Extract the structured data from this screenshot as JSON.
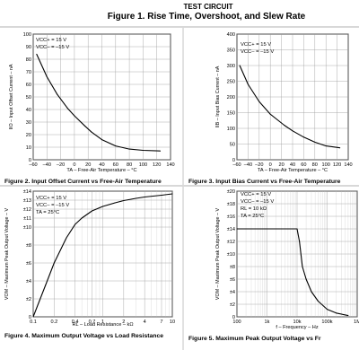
{
  "header": {
    "subtitle": "TEST CIRCUIT",
    "title": "Figure 1. Rise Time, Overshoot, and Slew Rate"
  },
  "chart_data": [
    {
      "id": "fig2",
      "type": "line",
      "caption": "Figure 2. Input Offset Current vs Free-Air Temperature",
      "xlabel": "TA – Free-Air Temperature – °C",
      "ylabel": "IIO – Input Offset Current – nA",
      "conditions": [
        "VCC+ = 15 V",
        "VCC– = –15 V"
      ],
      "xlim": [
        -60,
        140
      ],
      "ylim": [
        0,
        100
      ],
      "x_scale": "linear",
      "grid": true,
      "xticks": [
        -60,
        -40,
        -20,
        0,
        20,
        40,
        60,
        80,
        100,
        120,
        140
      ],
      "xtick_labels": [
        "–60",
        "–40",
        "–20",
        "0",
        "20",
        "40",
        "60",
        "80",
        "100",
        "120",
        "140"
      ],
      "yticks": [
        0,
        10,
        20,
        30,
        40,
        50,
        60,
        70,
        80,
        90,
        100
      ],
      "ytick_labels": [
        "0",
        "10",
        "20",
        "30",
        "40",
        "50",
        "60",
        "70",
        "80",
        "90",
        "100"
      ],
      "series": [
        {
          "x": [
            -55,
            -40,
            -25,
            -10,
            0,
            15,
            25,
            40,
            60,
            80,
            100,
            125
          ],
          "y": [
            84,
            66,
            52,
            41,
            35,
            27,
            22,
            16,
            11,
            8.5,
            7.5,
            7
          ]
        }
      ]
    },
    {
      "id": "fig3",
      "type": "line",
      "caption": "Figure 3. Input Bias Current vs Free-Air Temperature",
      "xlabel": "TA – Free-Air Temperature – °C",
      "ylabel": "IIB – Input Bias Current – nA",
      "conditions": [
        "VCC+ = 15 V",
        "VCC– = –15 V"
      ],
      "xlim": [
        -60,
        140
      ],
      "ylim": [
        0,
        400
      ],
      "x_scale": "linear",
      "grid": true,
      "xticks": [
        -60,
        -40,
        -20,
        0,
        20,
        40,
        60,
        80,
        100,
        120,
        140
      ],
      "xtick_labels": [
        "–60",
        "–40",
        "–20",
        "0",
        "20",
        "40",
        "60",
        "80",
        "100",
        "120",
        "140"
      ],
      "yticks": [
        0,
        50,
        100,
        150,
        200,
        250,
        300,
        350,
        400
      ],
      "ytick_labels": [
        "0",
        "50",
        "100",
        "150",
        "200",
        "250",
        "300",
        "350",
        "400"
      ],
      "series": [
        {
          "x": [
            -55,
            -40,
            -20,
            0,
            25,
            40,
            60,
            80,
            100,
            125
          ],
          "y": [
            300,
            240,
            185,
            145,
            110,
            92,
            72,
            56,
            44,
            38
          ]
        }
      ]
    },
    {
      "id": "fig4",
      "type": "line",
      "caption": "Figure 4. Maximum Output Voltage vs Load Resistance",
      "xlabel": "RL – Load Resistance – kΩ",
      "ylabel": "VOM – Maximum Peak Output Voltage – V",
      "conditions": [
        "VCC+ = 15 V",
        "VCC– = –15 V",
        "TA = 25°C"
      ],
      "xlim": [
        0.1,
        10
      ],
      "ylim": [
        0,
        14
      ],
      "x_scale": "log",
      "grid": true,
      "xticks": [
        0.1,
        0.2,
        0.4,
        0.7,
        1,
        2,
        4,
        7,
        10
      ],
      "xtick_labels": [
        "0.1",
        "0.2",
        "0.4",
        "0.7",
        "1",
        "2",
        "4",
        "7",
        "10"
      ],
      "yticks": [
        0,
        2,
        4,
        6,
        8,
        10,
        11,
        12,
        13,
        14
      ],
      "ytick_labels": [
        "0",
        "±2",
        "±4",
        "±6",
        "±8",
        "±10",
        "±11",
        "±12",
        "±13",
        "±14"
      ],
      "series": [
        {
          "x": [
            0.1,
            0.15,
            0.2,
            0.3,
            0.4,
            0.5,
            0.7,
            1,
            1.5,
            2,
            3,
            4,
            7,
            10
          ],
          "y": [
            0,
            3.5,
            6,
            8.8,
            10.3,
            11,
            11.8,
            12.3,
            12.7,
            12.95,
            13.2,
            13.35,
            13.55,
            13.7
          ]
        }
      ]
    },
    {
      "id": "fig5",
      "type": "line",
      "caption": "Figure 5. Maximum Peak Output Voltage vs Fr",
      "xlabel": "f – Frequency – Hz",
      "ylabel": "VOM – Maximum Peak Output Voltage – V",
      "conditions": [
        "VCC+ = 15 V",
        "VCC– = –15 V",
        "RL = 10 kΩ",
        "TA = 25°C"
      ],
      "xlim": [
        100,
        1000000
      ],
      "ylim": [
        0,
        20
      ],
      "x_scale": "log",
      "grid": true,
      "xticks": [
        100,
        1000,
        10000,
        100000,
        1000000
      ],
      "xtick_labels": [
        "100",
        "1k",
        "10k",
        "100k",
        "1M"
      ],
      "yticks": [
        0,
        2,
        4,
        6,
        8,
        10,
        12,
        14,
        16,
        18,
        20
      ],
      "ytick_labels": [
        "0",
        "±2",
        "±4",
        "±6",
        "±8",
        "±10",
        "±12",
        "±14",
        "±16",
        "±18",
        "±20"
      ],
      "series": [
        {
          "x": [
            100,
            1000,
            5000,
            10000,
            12000,
            15000,
            20000,
            30000,
            50000,
            100000,
            200000,
            500000
          ],
          "y": [
            14,
            14,
            14,
            14,
            12,
            8,
            6,
            4,
            2.5,
            1.2,
            0.6,
            0.2
          ]
        }
      ]
    }
  ]
}
